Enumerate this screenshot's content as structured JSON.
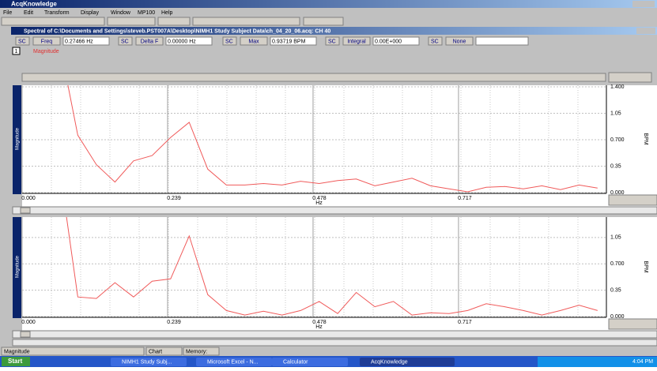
{
  "window": {
    "title": "AcqKnowledge"
  },
  "menu": [
    "File",
    "Edit",
    "Transform",
    "Display",
    "Window",
    "MP100",
    "Help"
  ],
  "document": {
    "title": "Spectral of C:\\Documents and Settings\\steveb.PST007A\\Desktop\\NIMH1 Study Subject Data\\ch_04_20_06.acq: CH 40"
  },
  "measurements": [
    {
      "channel": "SC",
      "name": "Freq",
      "value": "0.27466 Hz"
    },
    {
      "channel": "SC",
      "name": "Delta F",
      "value": "0.00000 Hz"
    },
    {
      "channel": "SC",
      "name": "Max",
      "value": "0.93719 BPM"
    },
    {
      "channel": "SC",
      "name": "Integral",
      "value": "0.00E+000"
    },
    {
      "channel": "SC",
      "name": "None",
      "value": ""
    }
  ],
  "channel": {
    "number": "1",
    "label": "Magnitude"
  },
  "chart_data": [
    {
      "type": "line",
      "xlabel": "Hz",
      "ylabel": "Magnitude",
      "ylabel_right": "BPM",
      "color": "#f05a5a",
      "grid": true,
      "x": [
        0.061,
        0.0915,
        0.122,
        0.1525,
        0.183,
        0.2135,
        0.244,
        0.2745,
        0.305,
        0.3355,
        0.366,
        0.3965,
        0.427,
        0.4575,
        0.488,
        0.5185,
        0.549,
        0.5795,
        0.61,
        0.6405,
        0.671,
        0.7015,
        0.732,
        0.7625,
        0.793,
        0.8235,
        0.854,
        0.8845,
        0.915,
        0.9455
      ],
      "values": [
        2.0,
        0.76,
        0.37,
        0.14,
        0.42,
        0.49,
        0.73,
        0.93,
        0.31,
        0.1,
        0.1,
        0.12,
        0.1,
        0.15,
        0.12,
        0.16,
        0.18,
        0.09,
        0.14,
        0.19,
        0.09,
        0.05,
        0.01,
        0.07,
        0.08,
        0.05,
        0.09,
        0.04,
        0.1,
        0.06
      ],
      "xlim": [
        0,
        0.96
      ],
      "ylim": [
        0,
        1.4
      ],
      "xticks": [
        {
          "value": 0,
          "label": "0.000"
        },
        0.239,
        0.478,
        0.717
      ],
      "yticks": [
        {
          "value": 0,
          "label": "0.000"
        },
        0.35,
        {
          "value": 0.7,
          "label": "0.700"
        },
        1.05,
        {
          "value": 1.4,
          "label": "1.400"
        }
      ]
    },
    {
      "type": "line",
      "xlabel": "Hz",
      "ylabel": "Magnitude",
      "ylabel_right": "BPM",
      "color": "#f05a5a",
      "grid": true,
      "x": [
        0.061,
        0.0915,
        0.122,
        0.1525,
        0.183,
        0.2135,
        0.244,
        0.2745,
        0.305,
        0.3355,
        0.366,
        0.3965,
        0.427,
        0.4575,
        0.488,
        0.5185,
        0.549,
        0.5795,
        0.61,
        0.6405,
        0.671,
        0.7015,
        0.732,
        0.7625,
        0.793,
        0.8235,
        0.854,
        0.8845,
        0.915,
        0.9455
      ],
      "values": [
        2.0,
        0.26,
        0.24,
        0.45,
        0.26,
        0.47,
        0.5,
        1.07,
        0.29,
        0.08,
        0.02,
        0.07,
        0.02,
        0.08,
        0.2,
        0.04,
        0.32,
        0.13,
        0.2,
        0.02,
        0.05,
        0.04,
        0.08,
        0.17,
        0.13,
        0.08,
        0.02,
        0.08,
        0.15,
        0.08
      ],
      "xlim": [
        0,
        0.96
      ],
      "ylim": [
        0,
        1.3
      ],
      "xticks": [
        {
          "value": 0,
          "label": "0.000"
        },
        0.239,
        0.478,
        0.717
      ],
      "yticks": [
        {
          "value": 0,
          "label": "0.000"
        },
        0.35,
        {
          "value": 0.7,
          "label": "0.700"
        },
        1.05
      ]
    }
  ],
  "status_bar": [
    "Magnitude",
    "Chart",
    "Memory:"
  ],
  "taskbar": {
    "start": "Start",
    "tasks": [
      "NIMH1 Study Subj...",
      "Microsoft Excel - N...",
      "Calculator",
      "AcqKnowledge"
    ],
    "clock": "4:04 PM"
  }
}
